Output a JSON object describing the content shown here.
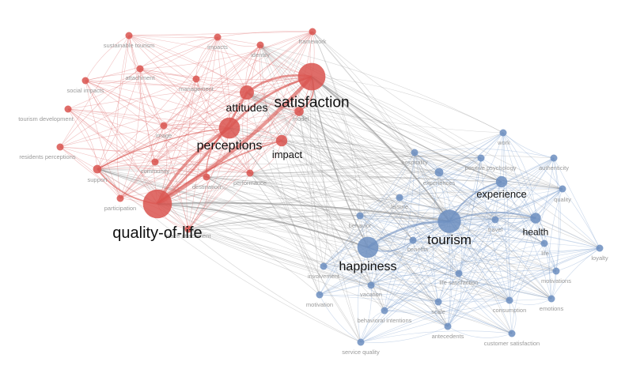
{
  "colors": {
    "cluster_red": "#d9534f",
    "cluster_blue": "#6c8ebf",
    "edge_red": "#e07575",
    "edge_blue": "#8aa8d2",
    "edge_grey": "#8c8c8c",
    "label_small": "#9a9a9a",
    "label_large": "#111111"
  },
  "nodes": [
    {
      "id": "sustainable_tourism",
      "label": "sustainable tourism",
      "cluster": "red",
      "size": 1
    },
    {
      "id": "impacts",
      "label": "impacts",
      "cluster": "red",
      "size": 1
    },
    {
      "id": "identity",
      "label": "identity",
      "cluster": "red",
      "size": 1
    },
    {
      "id": "framework",
      "label": "framework",
      "cluster": "red",
      "size": 1
    },
    {
      "id": "attachment",
      "label": "attachment",
      "cluster": "red",
      "size": 1
    },
    {
      "id": "management",
      "label": "management",
      "cluster": "red",
      "size": 1
    },
    {
      "id": "social_impacts",
      "label": "social impacts",
      "cluster": "red",
      "size": 1
    },
    {
      "id": "tourism_development",
      "label": "tourism development",
      "cluster": "red",
      "size": 1
    },
    {
      "id": "residents_perceptions",
      "label": "residents perceptions",
      "cluster": "red",
      "size": 1
    },
    {
      "id": "image",
      "label": "image",
      "cluster": "red",
      "size": 1
    },
    {
      "id": "community",
      "label": "community",
      "cluster": "red",
      "size": 1
    },
    {
      "id": "support",
      "label": "support",
      "cluster": "red",
      "size": 1.2
    },
    {
      "id": "participation",
      "label": "participation",
      "cluster": "red",
      "size": 1
    },
    {
      "id": "destination",
      "label": "destination",
      "cluster": "red",
      "size": 1
    },
    {
      "id": "performance",
      "label": "performance",
      "cluster": "red",
      "size": 1
    },
    {
      "id": "place_attachment",
      "label": "place attachment",
      "cluster": "red",
      "size": 1
    },
    {
      "id": "model",
      "label": "model",
      "cluster": "red",
      "size": 1.3
    },
    {
      "id": "impact",
      "label": "impact",
      "cluster": "red",
      "size": 1.6
    },
    {
      "id": "attitudes",
      "label": "attitudes",
      "cluster": "red",
      "size": 2
    },
    {
      "id": "perceptions",
      "label": "perceptions",
      "cluster": "red",
      "size": 2.3
    },
    {
      "id": "satisfaction",
      "label": "satisfaction",
      "cluster": "red",
      "size": 3.2
    },
    {
      "id": "quality_of_life",
      "label": "quality-of-life",
      "cluster": "red",
      "size": 3.4
    },
    {
      "id": "work",
      "label": "work",
      "cluster": "blue",
      "size": 1
    },
    {
      "id": "hospitality",
      "label": "hospitality",
      "cluster": "blue",
      "size": 1
    },
    {
      "id": "positive_psychology",
      "label": "positive psychology",
      "cluster": "blue",
      "size": 1
    },
    {
      "id": "authenticity",
      "label": "authenticity",
      "cluster": "blue",
      "size": 1
    },
    {
      "id": "experiences",
      "label": "experiences",
      "cluster": "blue",
      "size": 1.2
    },
    {
      "id": "experience",
      "label": "experience",
      "cluster": "blue",
      "size": 1.6
    },
    {
      "id": "quality",
      "label": "quality",
      "cluster": "blue",
      "size": 1
    },
    {
      "id": "leisure",
      "label": "leisure",
      "cluster": "blue",
      "size": 1
    },
    {
      "id": "behavior",
      "label": "behavior",
      "cluster": "blue",
      "size": 1
    },
    {
      "id": "tourism",
      "label": "tourism",
      "cluster": "blue",
      "size": 2.6
    },
    {
      "id": "travel",
      "label": "travel",
      "cluster": "blue",
      "size": 1
    },
    {
      "id": "health",
      "label": "health",
      "cluster": "blue",
      "size": 1.5
    },
    {
      "id": "benefits",
      "label": "benefits",
      "cluster": "blue",
      "size": 1
    },
    {
      "id": "life",
      "label": "life",
      "cluster": "blue",
      "size": 1
    },
    {
      "id": "loyalty",
      "label": "loyalty",
      "cluster": "blue",
      "size": 1
    },
    {
      "id": "happiness",
      "label": "happiness",
      "cluster": "blue",
      "size": 2.3
    },
    {
      "id": "involvement",
      "label": "involvement",
      "cluster": "blue",
      "size": 1
    },
    {
      "id": "life_satisfaction",
      "label": "life satisfaction",
      "cluster": "blue",
      "size": 1
    },
    {
      "id": "motivations",
      "label": "motivations",
      "cluster": "blue",
      "size": 1
    },
    {
      "id": "vacation",
      "label": "vacation",
      "cluster": "blue",
      "size": 1
    },
    {
      "id": "motivation",
      "label": "motivation",
      "cluster": "blue",
      "size": 1
    },
    {
      "id": "scale",
      "label": "scale",
      "cluster": "blue",
      "size": 1
    },
    {
      "id": "consumption",
      "label": "consumption",
      "cluster": "blue",
      "size": 1
    },
    {
      "id": "emotions",
      "label": "emotions",
      "cluster": "blue",
      "size": 1
    },
    {
      "id": "behavioral_intentions",
      "label": "behavioral intentions",
      "cluster": "blue",
      "size": 1
    },
    {
      "id": "antecedents",
      "label": "antecedents",
      "cluster": "blue",
      "size": 1
    },
    {
      "id": "service_quality",
      "label": "service quality",
      "cluster": "blue",
      "size": 1
    },
    {
      "id": "customer_satisfaction",
      "label": "customer satisfaction",
      "cluster": "blue",
      "size": 1
    }
  ],
  "edges": [
    {
      "source": "quality_of_life",
      "target": "satisfaction",
      "weight": 5
    },
    {
      "source": "quality_of_life",
      "target": "perceptions",
      "weight": 4
    },
    {
      "source": "quality_of_life",
      "target": "attitudes",
      "weight": 3
    },
    {
      "source": "quality_of_life",
      "target": "impact",
      "weight": 2
    },
    {
      "source": "quality_of_life",
      "target": "support",
      "weight": 2
    },
    {
      "source": "quality_of_life",
      "target": "tourism",
      "weight": 2
    },
    {
      "source": "quality_of_life",
      "target": "happiness",
      "weight": 2
    },
    {
      "source": "satisfaction",
      "target": "perceptions",
      "weight": 3
    },
    {
      "source": "satisfaction",
      "target": "attitudes",
      "weight": 3
    },
    {
      "source": "satisfaction",
      "target": "model",
      "weight": 2
    },
    {
      "source": "satisfaction",
      "target": "tourism",
      "weight": 2
    },
    {
      "source": "satisfaction",
      "target": "happiness",
      "weight": 1.5
    },
    {
      "source": "satisfaction",
      "target": "experience",
      "weight": 1.5
    },
    {
      "source": "tourism",
      "target": "happiness",
      "weight": 3
    },
    {
      "source": "tourism",
      "target": "health",
      "weight": 2
    },
    {
      "source": "tourism",
      "target": "experience",
      "weight": 2
    },
    {
      "source": "happiness",
      "target": "benefits",
      "weight": 1.5
    },
    {
      "source": "perceptions",
      "target": "destination",
      "weight": 1.5
    },
    {
      "source": "perceptions",
      "target": "support",
      "weight": 1.5
    }
  ]
}
